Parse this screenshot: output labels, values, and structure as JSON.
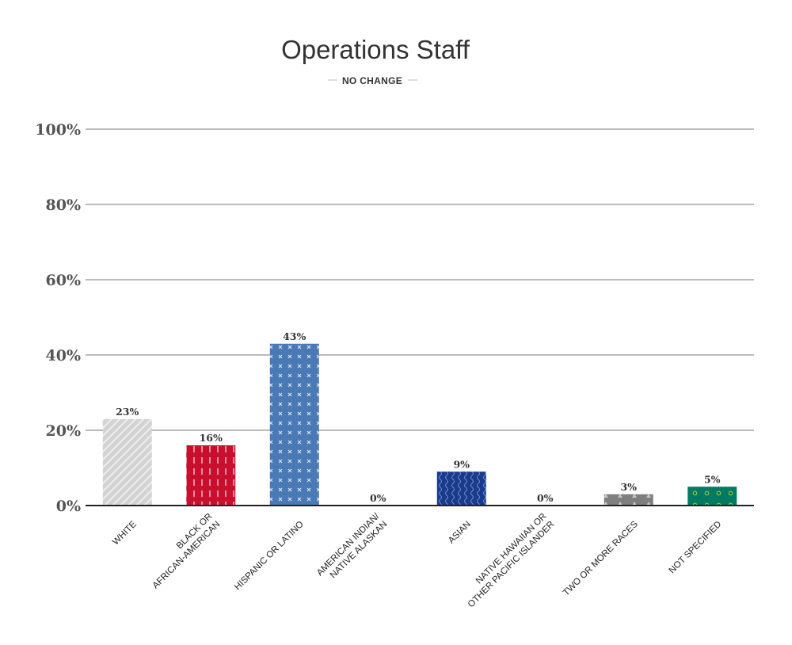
{
  "chart_data": {
    "type": "bar",
    "title": "Operations Staff",
    "subtitle": "NO CHANGE",
    "ylim": [
      0,
      100
    ],
    "yticks": [
      0,
      20,
      40,
      60,
      80,
      100
    ],
    "ytick_labels": [
      "0%",
      "20%",
      "40%",
      "60%",
      "80%",
      "100%"
    ],
    "grid": true,
    "categories": [
      [
        "WHITE"
      ],
      [
        "BLACK OR",
        "AFRICAN-AMERICAN"
      ],
      [
        "HISPANIC OR LATINO"
      ],
      [
        "AMERICAN INDIAN/",
        "NATIVE ALASKAN"
      ],
      [
        "ASIAN"
      ],
      [
        "NATIVE HAWAIIAN OR",
        "OTHER PACIFIC ISLANDER"
      ],
      [
        "TWO OR MORE RACES"
      ],
      [
        "NOT SPECIFIED"
      ]
    ],
    "values": [
      23,
      16,
      43,
      0,
      9,
      0,
      3,
      5
    ],
    "value_labels": [
      "23%",
      "16%",
      "43%",
      "0%",
      "9%",
      "0%",
      "3%",
      "5%"
    ],
    "colors": [
      "#d3d3d3",
      "#c8102e",
      "#4a7ab5",
      "#ffffff",
      "#1a3a8a",
      "#ffffff",
      "#7f7f7f",
      "#007a62"
    ],
    "patterns": [
      "diagonal-stripes",
      "dashes",
      "crosses",
      "none",
      "waves",
      "none",
      "triangles",
      "circles"
    ]
  }
}
